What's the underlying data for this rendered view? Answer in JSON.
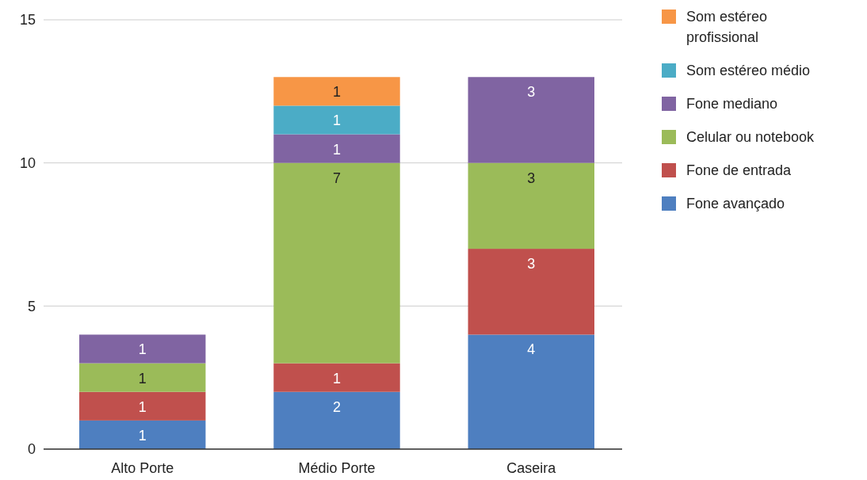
{
  "chart_data": {
    "type": "bar",
    "stacked": true,
    "categories": [
      "Alto Porte",
      "Médio Porte",
      "Caseira"
    ],
    "series": [
      {
        "name": "Fone avançado",
        "color": "#4e7fc0",
        "values": [
          1,
          2,
          4
        ]
      },
      {
        "name": "Fone de entrada",
        "color": "#c0504d",
        "values": [
          1,
          1,
          3
        ]
      },
      {
        "name": "Celular ou notebook",
        "color": "#9bbb59",
        "values": [
          1,
          7,
          3
        ]
      },
      {
        "name": "Fone mediano",
        "color": "#8064a2",
        "values": [
          1,
          1,
          3
        ]
      },
      {
        "name": "Som estéreo médio",
        "color": "#4bacc6",
        "values": [
          null,
          1,
          null
        ]
      },
      {
        "name": "Som estéreo profissional",
        "color": "#f79646",
        "values": [
          null,
          1,
          null
        ]
      }
    ],
    "ylim": [
      0,
      15
    ],
    "yticks": [
      0,
      5,
      10,
      15
    ],
    "grid": "y",
    "legend": "right",
    "data_labels": true
  }
}
